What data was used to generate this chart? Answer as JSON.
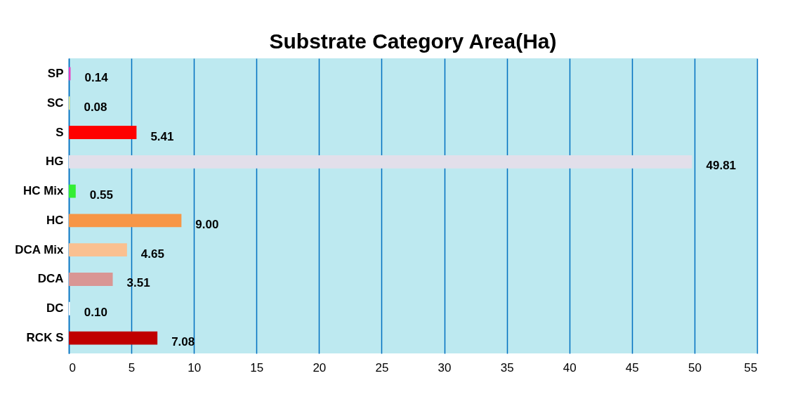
{
  "chart_data": {
    "type": "bar",
    "orientation": "horizontal",
    "title": "Substrate Category Area(Ha)",
    "categories": [
      "SP",
      "SC",
      "S",
      "HG",
      "HC Mix",
      "HC",
      "DCA Mix",
      "DCA",
      "DC",
      "RCK S"
    ],
    "values": [
      0.14,
      0.08,
      5.41,
      49.81,
      0.55,
      9.0,
      4.65,
      3.51,
      0.1,
      7.08
    ],
    "value_labels": [
      "0.14",
      "0.08",
      "5.41",
      "49.81",
      "0.55",
      "9.00",
      "4.65",
      "3.51",
      "0.10",
      "7.08"
    ],
    "colors": [
      "#e83fc2",
      "#f5f08a",
      "#ff0000",
      "#e2dfea",
      "#33ee33",
      "#f79646",
      "#fac090",
      "#d99694",
      "#ffffff",
      "#c00000"
    ],
    "xlim": [
      0,
      55
    ],
    "xticks": [
      0,
      5,
      10,
      15,
      20,
      25,
      30,
      35,
      40,
      45,
      50,
      55
    ],
    "grid": "x"
  }
}
